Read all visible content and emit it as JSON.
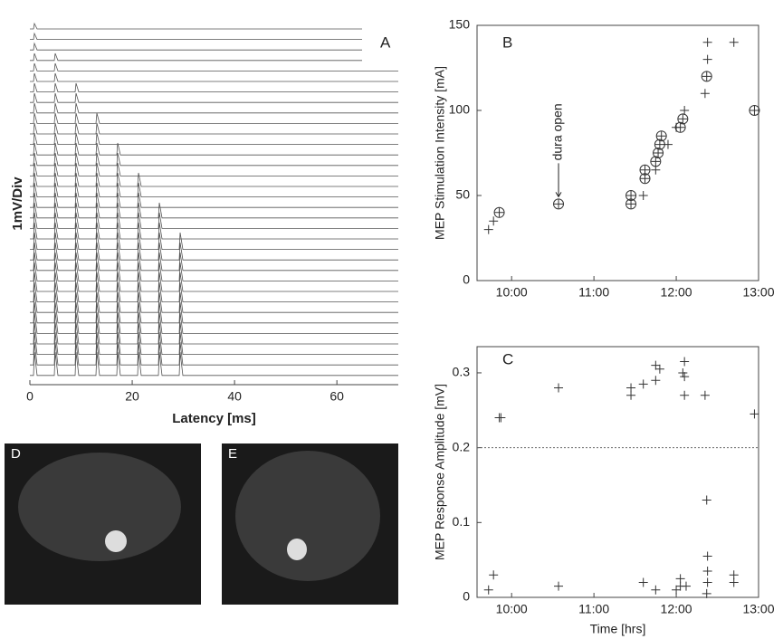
{
  "chart_data": [
    {
      "type": "line",
      "panel": "A",
      "xlabel": "Latency [ms]",
      "ylabel": "1mV/Div",
      "xlim": [
        0,
        72
      ],
      "xticks": [
        0,
        20,
        40,
        60
      ]
    },
    {
      "type": "scatter",
      "panel": "B",
      "ylabel": "MEP Stimulation Intensity [mA]",
      "annotation": "dura open",
      "annotation_x": 10.57,
      "annotation_y": 45,
      "xlim": [
        9.58,
        13.0
      ],
      "xticks": [
        {
          "value": 10,
          "label": "10:00"
        },
        {
          "value": 11,
          "label": "11:00"
        },
        {
          "value": 12,
          "label": "12:00"
        },
        {
          "value": 13,
          "label": "13:00"
        }
      ],
      "ylim": [
        0,
        150
      ],
      "yticks": [
        0,
        50,
        100,
        150
      ],
      "color": "#333333",
      "series": [
        {
          "marker": "plus",
          "x": [
            9.72,
            9.78,
            11.6,
            11.75,
            11.9,
            12.0,
            12.1,
            12.35,
            12.38,
            12.38,
            12.7
          ],
          "values": [
            30,
            35,
            50,
            65,
            80,
            90,
            100,
            110,
            130,
            140,
            140
          ]
        },
        {
          "marker": "circle-plus",
          "x": [
            9.85,
            10.57,
            11.45,
            11.45,
            11.62,
            11.62,
            11.75,
            11.78,
            11.8,
            11.82,
            12.05,
            12.08,
            12.37,
            12.95
          ],
          "values": [
            40,
            45,
            45,
            50,
            60,
            65,
            70,
            75,
            80,
            85,
            90,
            95,
            120,
            100
          ]
        }
      ]
    },
    {
      "type": "scatter",
      "panel": "C",
      "ylabel": "MEP Response Amplitude [mV]",
      "xlabel": "Time [hrs]",
      "threshold": 0.2,
      "xlim": [
        9.58,
        13.0
      ],
      "xticks": [
        {
          "value": 10,
          "label": "10:00"
        },
        {
          "value": 11,
          "label": "11:00"
        },
        {
          "value": 12,
          "label": "12:00"
        },
        {
          "value": 13,
          "label": "13:00"
        }
      ],
      "ylim": [
        0,
        0.335
      ],
      "yticks": [
        0,
        0.1,
        0.2,
        0.3
      ],
      "color": "#333333",
      "series": [
        {
          "marker": "plus",
          "x": [
            9.72,
            9.78,
            9.85,
            9.87,
            10.57,
            10.57,
            11.45,
            11.45,
            11.6,
            11.6,
            11.75,
            11.75,
            11.8,
            11.75,
            12.0,
            12.05,
            12.05,
            12.08,
            12.1,
            12.1,
            12.1,
            12.12,
            12.35,
            12.37,
            12.38,
            12.38,
            12.38,
            12.37,
            12.7,
            12.7,
            12.95
          ],
          "values": [
            0.01,
            0.03,
            0.24,
            0.24,
            0.28,
            0.015,
            0.28,
            0.27,
            0.285,
            0.02,
            0.29,
            0.31,
            0.305,
            0.01,
            0.01,
            0.015,
            0.025,
            0.3,
            0.295,
            0.315,
            0.27,
            0.015,
            0.27,
            0.13,
            0.055,
            0.035,
            0.02,
            0.005,
            0.03,
            0.02,
            0.245
          ]
        }
      ]
    }
  ],
  "images": [
    {
      "label": "D"
    },
    {
      "label": "E"
    }
  ]
}
